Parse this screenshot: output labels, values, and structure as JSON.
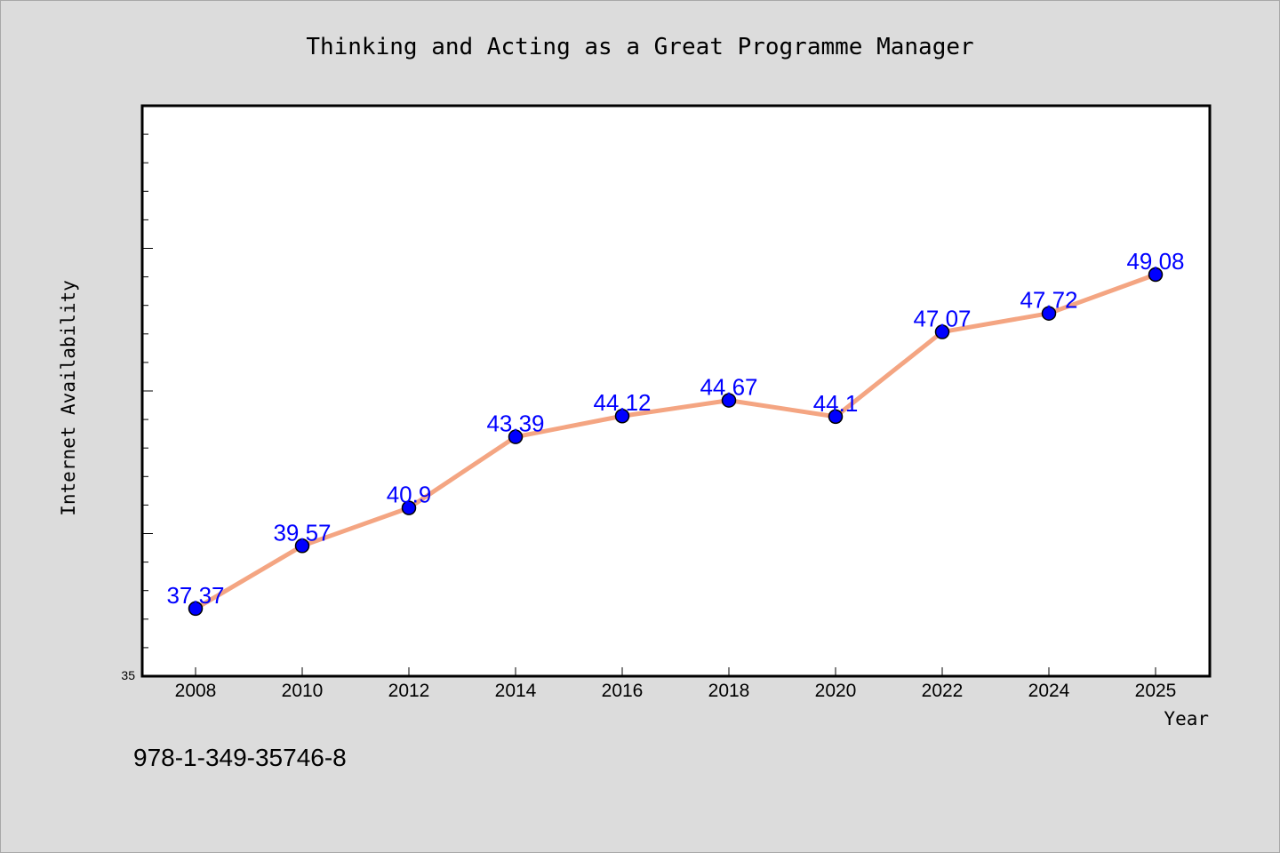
{
  "title": "Thinking and Acting as a Great Programme Manager",
  "footer_text": "978-1-349-35746-8",
  "chart_data": {
    "type": "line",
    "title": "Thinking and Acting as a Great Programme Manager",
    "xlabel": "Year",
    "ylabel": "Internet Availability",
    "categories": [
      "2008",
      "2010",
      "2012",
      "2014",
      "2016",
      "2018",
      "2020",
      "2022",
      "2024",
      "2025"
    ],
    "series": [
      {
        "values": [
          37.37,
          39.57,
          40.9,
          43.39,
          44.12,
          44.67,
          44.1,
          47.07,
          47.72,
          49.08
        ],
        "point_labels": [
          "37.37",
          "39.57",
          "40.9",
          "43.39",
          "44.12",
          "44.67",
          "44.1",
          "47.07",
          "47.72",
          "49.08"
        ]
      }
    ],
    "ylim": [
      35,
      55
    ],
    "y_tick_labels": [
      "35"
    ],
    "grid": false,
    "legend": "none",
    "colors": {
      "line": "#f4a582",
      "marker": "#0000ff",
      "data_label": "#0000ff",
      "background": "#dcdcdc",
      "plot_background": "#ffffff"
    }
  }
}
